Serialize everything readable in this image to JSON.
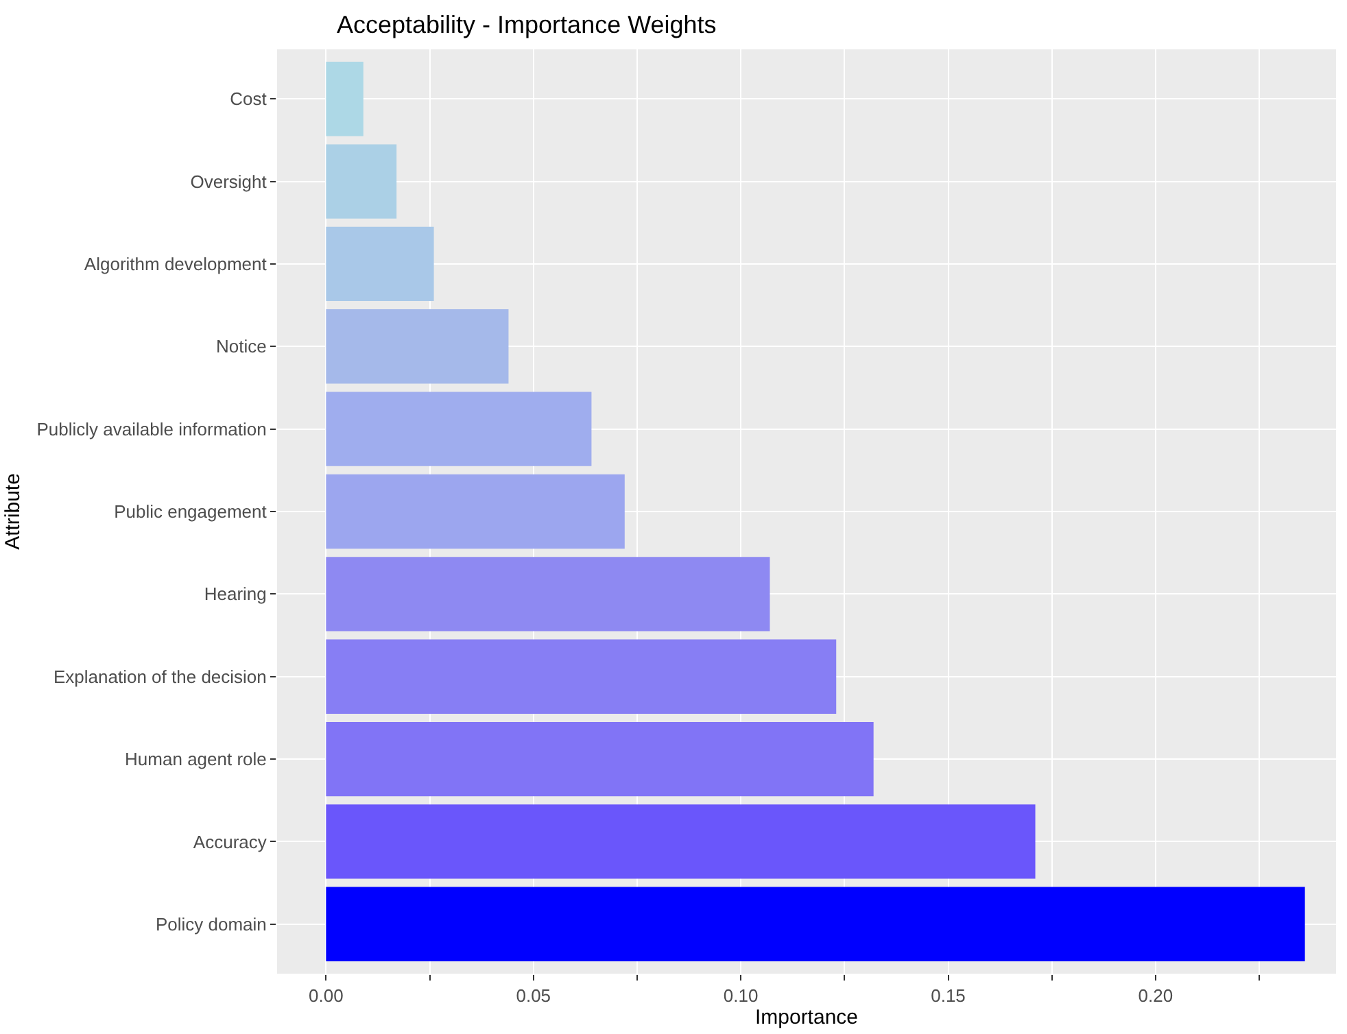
{
  "chart_data": {
    "type": "bar",
    "orientation": "horizontal",
    "title": "Acceptability - Importance Weights",
    "xlabel": "Importance",
    "ylabel": "Attribute",
    "categories": [
      "Cost",
      "Oversight",
      "Algorithm development",
      "Notice",
      "Publicly available information",
      "Public engagement",
      "Hearing",
      "Explanation of the decision",
      "Human agent role",
      "Accuracy",
      "Policy domain"
    ],
    "values": [
      0.009,
      0.017,
      0.026,
      0.044,
      0.064,
      0.072,
      0.107,
      0.123,
      0.132,
      0.171,
      0.236
    ],
    "colors": [
      "#add8e6",
      "#abd0e6",
      "#a9c8e8",
      "#a5b9ea",
      "#9fadee",
      "#9ca6ef",
      "#8e89f2",
      "#877ef4",
      "#8174f6",
      "#6a56fb",
      "#0000ff"
    ],
    "xlim": [
      -0.0118,
      0.2435
    ],
    "xticks": [
      {
        "value": 0.0,
        "label": "0.00"
      },
      {
        "value": 0.025,
        "label": null
      },
      {
        "value": 0.05,
        "label": "0.05"
      },
      {
        "value": 0.075,
        "label": null
      },
      {
        "value": 0.1,
        "label": "0.10"
      },
      {
        "value": 0.125,
        "label": null
      },
      {
        "value": 0.15,
        "label": "0.15"
      },
      {
        "value": 0.175,
        "label": null
      },
      {
        "value": 0.2,
        "label": "0.20"
      },
      {
        "value": 0.225,
        "label": null
      }
    ],
    "grid": true
  }
}
